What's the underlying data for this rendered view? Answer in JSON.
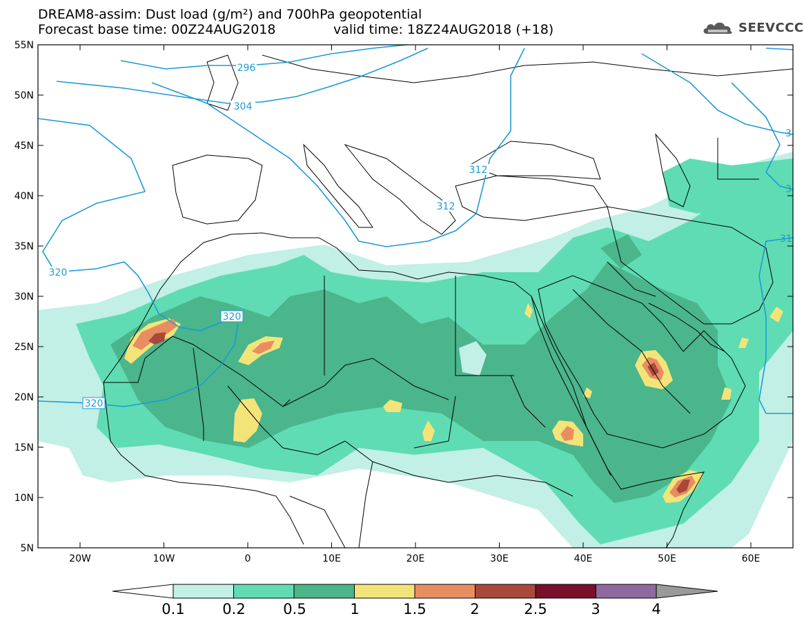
{
  "title_line1": "DREAM8-assim: Dust load (g/m²) and 700hPa geopotential",
  "title_line2": "Forecast base time: 00Z24AUG2018",
  "valid_time": "valid time: 18Z24AUG2018 (+18)",
  "logo_text": "SEEVCCC",
  "lat_labels": [
    "55N",
    "50N",
    "45N",
    "40N",
    "35N",
    "30N",
    "25N",
    "20N",
    "15N",
    "10N",
    "5N"
  ],
  "lon_labels": [
    "20W",
    "10W",
    "0",
    "10E",
    "20E",
    "30E",
    "40E",
    "50E",
    "60E"
  ],
  "contour_labels": {
    "c296": "296",
    "c304": "304",
    "c312": "312",
    "c312b": "312",
    "c320a": "320",
    "c320b": "320",
    "c320c": "320",
    "e1": "3",
    "e2": "3",
    "e3": "31"
  },
  "colorbar": {
    "labels": [
      "0.1",
      "0.2",
      "0.5",
      "1",
      "1.5",
      "2",
      "2.5",
      "3",
      "4"
    ],
    "colors": [
      "#c2efe6",
      "#5fdcb3",
      "#4bb58c",
      "#f3e479",
      "#e88d62",
      "#a9493b",
      "#7a0f2c",
      "#8e6aa0"
    ]
  },
  "palette": {
    "lt": "#c2efe6",
    "md": "#5fdcb3",
    "dk": "#4bb58c",
    "yl": "#f3e479",
    "or": "#e88d62",
    "rd": "#a9493b",
    "contour": "#1c9ad6",
    "grey": "#9a9a9a"
  }
}
